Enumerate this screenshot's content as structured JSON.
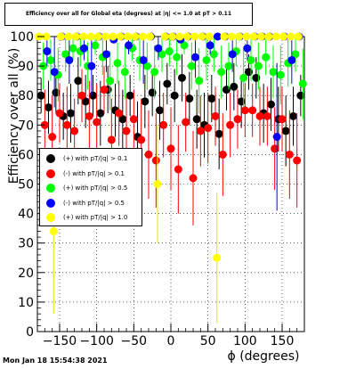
{
  "title": "Efficiency over all for Global eta (degrees) at |η| <= 1.0 at pT > 0.11",
  "timestamp": "Mon Jan 18 15:54:38 2021",
  "chart_data": {
    "type": "scatter",
    "xlabel": "ϕ (degrees)",
    "ylabel": "Efficiency over all (%)",
    "xlim": [
      -180,
      180
    ],
    "ylim": [
      0,
      100
    ],
    "xticks": [
      -150,
      -100,
      -50,
      0,
      50,
      100,
      150
    ],
    "yticks": [
      0,
      10,
      20,
      30,
      40,
      50,
      60,
      70,
      80,
      90,
      100
    ],
    "grid": true,
    "legend_position": "left-middle",
    "series": [
      {
        "name": "(+) with pT/|q| > 0.1",
        "color": "#000000",
        "x": [
          -175,
          -165,
          -155,
          -145,
          -135,
          -125,
          -115,
          -105,
          -95,
          -85,
          -75,
          -65,
          -55,
          -45,
          -35,
          -25,
          -15,
          -5,
          5,
          15,
          25,
          35,
          45,
          55,
          65,
          75,
          85,
          95,
          105,
          115,
          125,
          135,
          145,
          155,
          165,
          175
        ],
        "y": [
          80,
          76,
          81,
          73,
          74,
          85,
          78,
          80,
          74,
          82,
          75,
          72,
          80,
          66,
          78,
          81,
          75,
          84,
          80,
          86,
          79,
          72,
          70,
          79,
          67,
          82,
          83,
          78,
          88,
          86,
          74,
          77,
          72,
          68,
          73,
          80
        ],
        "err": [
          6,
          9,
          7,
          8,
          10,
          8,
          9,
          7,
          11,
          8,
          9,
          10,
          7,
          12,
          9,
          8,
          10,
          7,
          9,
          8,
          9,
          10,
          11,
          8,
          12,
          7,
          8,
          9,
          6,
          7,
          10,
          9,
          11,
          12,
          10,
          7
        ]
      },
      {
        "name": "(-) with pT/|q| > 0.1",
        "color": "#ff0000",
        "x": [
          -170,
          -160,
          -150,
          -140,
          -130,
          -120,
          -110,
          -100,
          -90,
          -80,
          -70,
          -60,
          -50,
          -40,
          -30,
          -20,
          -10,
          0,
          10,
          20,
          30,
          40,
          50,
          60,
          70,
          80,
          90,
          100,
          110,
          120,
          130,
          140,
          150,
          160,
          170
        ],
        "y": [
          70,
          66,
          74,
          70,
          68,
          80,
          73,
          71,
          82,
          65,
          74,
          68,
          72,
          65,
          60,
          58,
          70,
          62,
          55,
          71,
          52,
          68,
          69,
          73,
          60,
          70,
          72,
          75,
          75,
          73,
          73,
          62,
          72,
          60,
          58
        ],
        "err": [
          12,
          14,
          10,
          13,
          11,
          9,
          12,
          13,
          8,
          14,
          11,
          12,
          10,
          14,
          15,
          16,
          11,
          14,
          15,
          10,
          16,
          12,
          12,
          10,
          14,
          11,
          10,
          9,
          9,
          10,
          10,
          14,
          11,
          15,
          16
        ]
      },
      {
        "name": "(+) with pT/|q| > 0.5",
        "color": "#00ff00",
        "x": [
          -172,
          -162,
          -152,
          -142,
          -132,
          -122,
          -112,
          -102,
          -92,
          -82,
          -72,
          -62,
          -52,
          -42,
          -32,
          -22,
          -12,
          -2,
          8,
          18,
          28,
          38,
          48,
          58,
          68,
          78,
          88,
          98,
          108,
          118,
          128,
          138,
          148,
          158,
          168,
          178
        ],
        "y": [
          90,
          92,
          87,
          94,
          96,
          95,
          90,
          97,
          93,
          85,
          91,
          88,
          96,
          92,
          90,
          88,
          94,
          95,
          93,
          97,
          90,
          85,
          92,
          94,
          88,
          90,
          95,
          86,
          92,
          90,
          93,
          88,
          87,
          91,
          94,
          84
        ],
        "err": [
          8,
          7,
          9,
          6,
          4,
          5,
          8,
          3,
          6,
          10,
          7,
          9,
          4,
          7,
          8,
          9,
          6,
          5,
          6,
          3,
          8,
          11,
          7,
          6,
          9,
          8,
          5,
          10,
          7,
          8,
          6,
          9,
          10,
          8,
          6,
          12
        ]
      },
      {
        "name": "(-) with pT/|q| > 0.5",
        "color": "#0000ff",
        "x": [
          -167,
          -157,
          -147,
          -137,
          -127,
          -117,
          -107,
          -97,
          -87,
          -77,
          -67,
          -57,
          -47,
          -37,
          -27,
          -17,
          -7,
          3,
          13,
          23,
          33,
          43,
          53,
          63,
          73,
          83,
          93,
          103,
          113,
          123,
          133,
          143,
          153,
          163,
          173
        ],
        "y": [
          95,
          88,
          100,
          92,
          100,
          96,
          90,
          100,
          94,
          99,
          100,
          97,
          100,
          92,
          100,
          96,
          100,
          100,
          99,
          100,
          93,
          100,
          97,
          100,
          100,
          94,
          100,
          96,
          100,
          100,
          100,
          66,
          100,
          92,
          100
        ],
        "err": [
          5,
          12,
          0,
          8,
          0,
          4,
          10,
          0,
          6,
          1,
          0,
          3,
          0,
          8,
          0,
          4,
          0,
          0,
          1,
          0,
          7,
          0,
          3,
          0,
          0,
          6,
          0,
          4,
          0,
          0,
          0,
          25,
          0,
          8,
          0
        ]
      },
      {
        "name": "(+) with pT/|q| > 1.0",
        "color": "#ffff00",
        "x": [
          -178,
          -168,
          -158,
          -148,
          -138,
          -128,
          -118,
          -108,
          -98,
          -88,
          -78,
          -68,
          -58,
          -48,
          -38,
          -28,
          -18,
          -8,
          2,
          12,
          22,
          32,
          42,
          52,
          62,
          72,
          82,
          92,
          102,
          112,
          122,
          132,
          142,
          152,
          162,
          172
        ],
        "y": [
          100,
          100,
          34,
          100,
          100,
          100,
          100,
          100,
          100,
          100,
          100,
          100,
          100,
          100,
          100,
          100,
          50,
          100,
          100,
          100,
          100,
          100,
          100,
          100,
          25,
          100,
          100,
          100,
          100,
          100,
          100,
          100,
          100,
          100,
          100,
          100
        ],
        "err": [
          0,
          0,
          28,
          0,
          0,
          0,
          0,
          0,
          0,
          0,
          0,
          0,
          0,
          0,
          0,
          0,
          20,
          0,
          0,
          0,
          0,
          0,
          0,
          0,
          22,
          0,
          0,
          0,
          0,
          0,
          0,
          0,
          0,
          0,
          0,
          0
        ]
      }
    ]
  }
}
